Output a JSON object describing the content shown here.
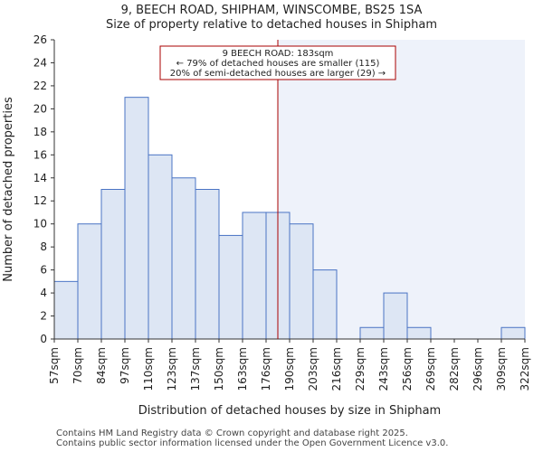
{
  "header": {
    "title": "9, BEECH ROAD, SHIPHAM, WINSCOMBE, BS25 1SA",
    "subtitle": "Size of property relative to detached houses in Shipham"
  },
  "chart_data": {
    "type": "bar",
    "bin_edges": [
      "57sqm",
      "70sqm",
      "84sqm",
      "97sqm",
      "110sqm",
      "123sqm",
      "137sqm",
      "150sqm",
      "163sqm",
      "176sqm",
      "190sqm",
      "203sqm",
      "216sqm",
      "229sqm",
      "243sqm",
      "256sqm",
      "269sqm",
      "282sqm",
      "296sqm",
      "309sqm",
      "322sqm"
    ],
    "values": [
      5,
      10,
      13,
      21,
      16,
      14,
      13,
      9,
      11,
      11,
      10,
      6,
      0,
      1,
      4,
      1,
      0,
      0,
      0,
      1
    ],
    "xlabel": "Distribution of detached houses by size in Shipham",
    "ylabel": "Number of detached properties",
    "ylim": [
      0,
      26
    ],
    "yticks": [
      0,
      2,
      4,
      6,
      8,
      10,
      12,
      14,
      16,
      18,
      20,
      22,
      24,
      26
    ],
    "grid": false,
    "marker": {
      "value_sqm": 183,
      "color": "#aa0000"
    },
    "annotation": {
      "line1": "9 BEECH ROAD: 183sqm",
      "line2": "← 79% of detached houses are smaller (115)",
      "line3": "20% of semi-detached houses are larger (29) →"
    },
    "colors": {
      "bar_fill": "#dde6f4",
      "bar_stroke": "#4a74c4",
      "highlight_region": "#eef2fa",
      "annotation_border": "#aa0000"
    }
  },
  "footer": {
    "line1": "Contains HM Land Registry data © Crown copyright and database right 2025.",
    "line2": "Contains public sector information licensed under the Open Government Licence v3.0."
  }
}
